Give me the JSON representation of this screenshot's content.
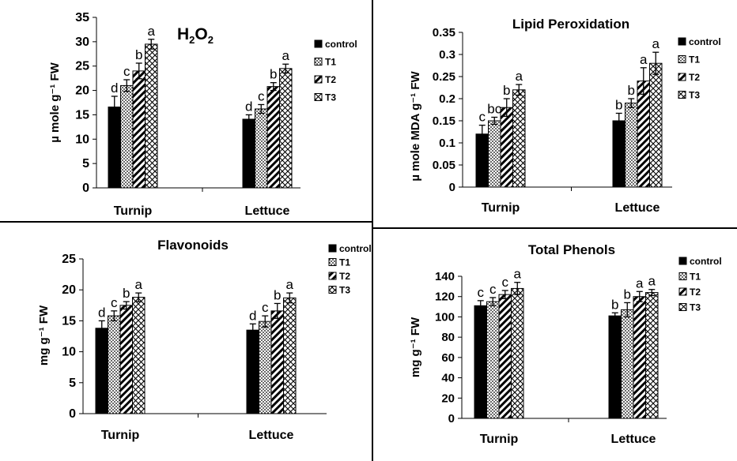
{
  "figure": {
    "legend": [
      "control",
      "T1",
      "T2",
      "T3"
    ],
    "categories": [
      "Turnip",
      "Lettuce"
    ]
  },
  "chart_data": [
    {
      "type": "bar",
      "title_main": "H",
      "title_sub1": "2",
      "title_mid": "O",
      "title_sub2": "2",
      "ylabel": "µ mole g⁻¹ FW",
      "categories": [
        "Turnip",
        "Lettuce"
      ],
      "ylim": [
        0,
        35
      ],
      "yticks": [
        0,
        5,
        10,
        15,
        20,
        25,
        30,
        35
      ],
      "legend_position": "right",
      "series": [
        {
          "name": "control",
          "values": [
            16.6,
            14.1
          ],
          "errors": [
            2.2,
            0.9
          ],
          "letters": [
            "d",
            "d"
          ]
        },
        {
          "name": "T1",
          "values": [
            21.0,
            16.2
          ],
          "errors": [
            1.2,
            0.9
          ],
          "letters": [
            "c",
            "c"
          ]
        },
        {
          "name": "T2",
          "values": [
            24.0,
            20.8
          ],
          "errors": [
            1.6,
            0.8
          ],
          "letters": [
            "b",
            "b"
          ]
        },
        {
          "name": "T3",
          "values": [
            29.5,
            24.5
          ],
          "errors": [
            1.0,
            0.9
          ],
          "letters": [
            "a",
            "a"
          ]
        }
      ]
    },
    {
      "type": "bar",
      "title": "Lipid Peroxidation",
      "ylabel": "µ mole MDA g⁻¹ FW",
      "categories": [
        "Turnip",
        "Lettuce"
      ],
      "ylim": [
        0,
        0.35
      ],
      "yticks": [
        0,
        0.05,
        0.1,
        0.15,
        0.2,
        0.25,
        0.3,
        0.35
      ],
      "ytick_labels": [
        "0",
        "0.05",
        "0.1",
        "0.15",
        "0.2",
        "0.25",
        "0.3",
        "0.35"
      ],
      "legend_position": "right",
      "series": [
        {
          "name": "control",
          "values": [
            0.12,
            0.15
          ],
          "errors": [
            0.02,
            0.017
          ],
          "letters": [
            "c",
            "b"
          ]
        },
        {
          "name": "T1",
          "values": [
            0.15,
            0.19
          ],
          "errors": [
            0.008,
            0.01
          ],
          "letters": [
            "bc",
            "b"
          ]
        },
        {
          "name": "T2",
          "values": [
            0.18,
            0.24
          ],
          "errors": [
            0.02,
            0.03
          ],
          "letters": [
            "b",
            "a"
          ]
        },
        {
          "name": "T3",
          "values": [
            0.22,
            0.28
          ],
          "errors": [
            0.012,
            0.025
          ],
          "letters": [
            "a",
            "a"
          ]
        }
      ]
    },
    {
      "type": "bar",
      "title": "Flavonoids",
      "ylabel": "mg g⁻¹ FW",
      "categories": [
        "Turnip",
        "Lettuce"
      ],
      "ylim": [
        0,
        25
      ],
      "yticks": [
        0,
        5,
        10,
        15,
        20,
        25
      ],
      "legend_position": "top-right",
      "series": [
        {
          "name": "control",
          "values": [
            13.8,
            13.5
          ],
          "errors": [
            1.2,
            1.0
          ],
          "letters": [
            "d",
            "d"
          ]
        },
        {
          "name": "T1",
          "values": [
            15.8,
            14.9
          ],
          "errors": [
            0.8,
            0.9
          ],
          "letters": [
            "c",
            "c"
          ]
        },
        {
          "name": "T2",
          "values": [
            17.5,
            16.6
          ],
          "errors": [
            0.6,
            1.2
          ],
          "letters": [
            "b",
            "b"
          ]
        },
        {
          "name": "T3",
          "values": [
            18.8,
            18.7
          ],
          "errors": [
            0.7,
            0.8
          ],
          "letters": [
            "a",
            "a"
          ]
        }
      ]
    },
    {
      "type": "bar",
      "title": "Total Phenols",
      "ylabel": "mg g⁻¹ FW",
      "categories": [
        "Turnip",
        "Lettuce"
      ],
      "ylim": [
        0,
        140
      ],
      "yticks": [
        0,
        20,
        40,
        60,
        80,
        100,
        120,
        140
      ],
      "legend_position": "right",
      "series": [
        {
          "name": "control",
          "values": [
            111,
            101
          ],
          "errors": [
            5,
            3
          ],
          "letters": [
            "c",
            "b"
          ]
        },
        {
          "name": "T1",
          "values": [
            115,
            107
          ],
          "errors": [
            4,
            7
          ],
          "letters": [
            "c",
            "b"
          ]
        },
        {
          "name": "T2",
          "values": [
            122,
            120
          ],
          "errors": [
            4,
            5
          ],
          "letters": [
            "c",
            "a"
          ]
        },
        {
          "name": "T3",
          "values": [
            128,
            124
          ],
          "errors": [
            6,
            3
          ],
          "letters": [
            "a",
            "a"
          ]
        }
      ]
    }
  ]
}
